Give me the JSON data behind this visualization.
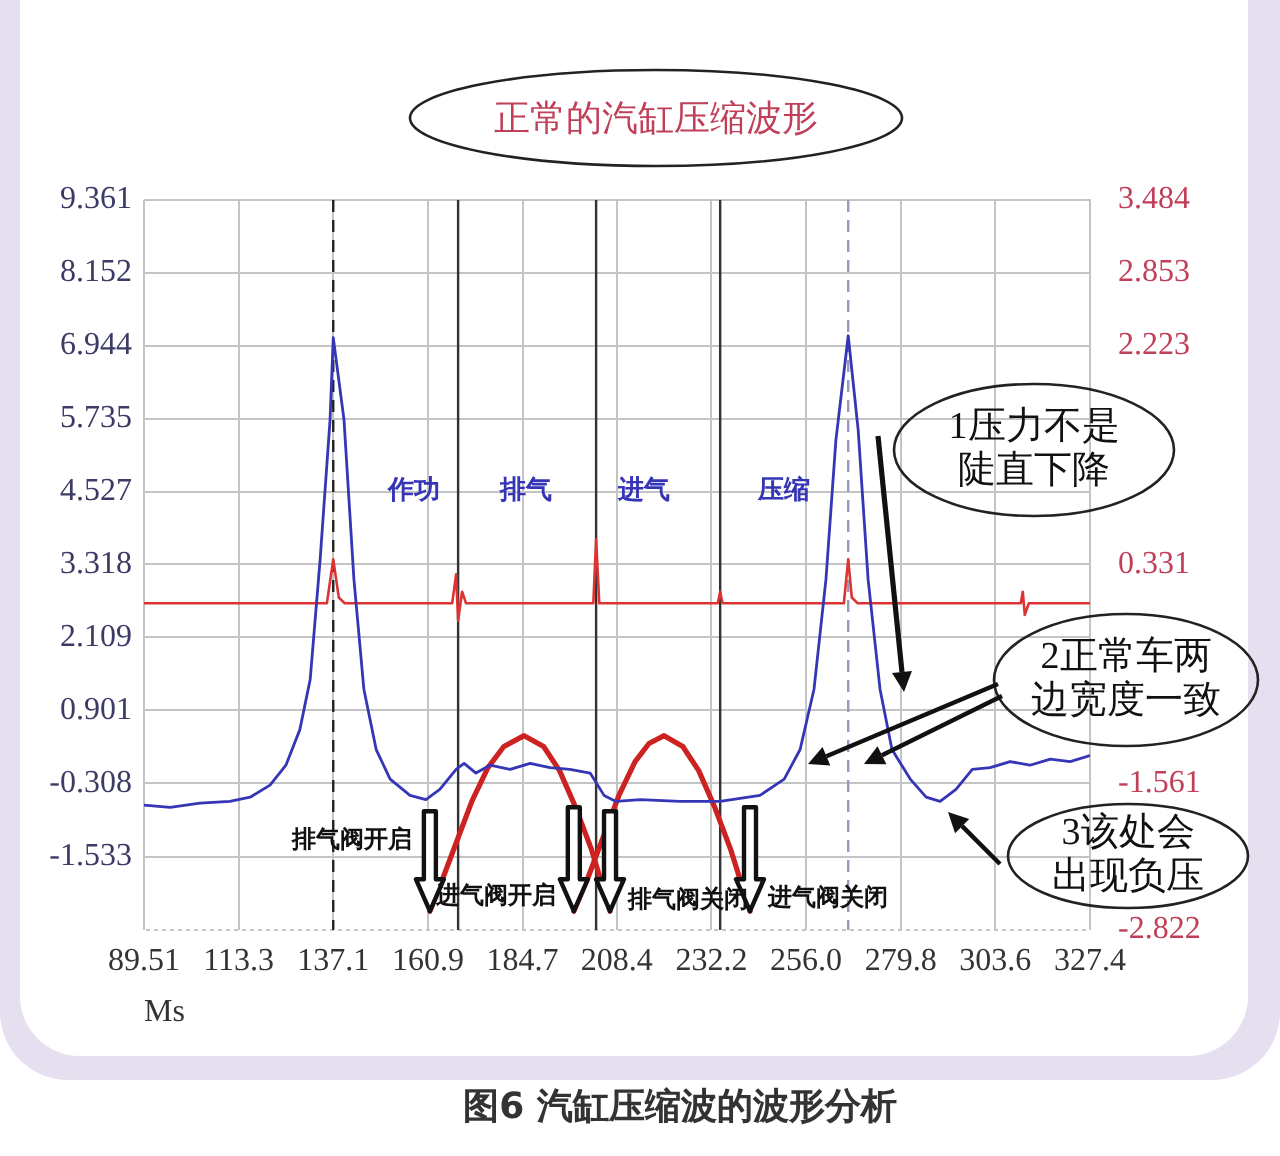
{
  "chart_data": {
    "type": "line",
    "title": "正常的汽缸压缩波形",
    "xlabel": "Ms",
    "xlim": [
      89.51,
      327.4
    ],
    "xticks": [
      89.51,
      113.3,
      137.1,
      160.9,
      184.7,
      208.4,
      232.2,
      {
        "value": 256,
        "label": "256.0"
      },
      279.8,
      303.6,
      327.4
    ],
    "ylim": [
      -2.742,
      9.361
    ],
    "yticks": [
      9.361,
      8.152,
      6.944,
      5.735,
      4.527,
      3.318,
      2.109,
      0.901,
      -0.308,
      -1.533
    ],
    "y2lim": [
      -2.822,
      3.484
    ],
    "y2ticks": [
      3.484,
      2.853,
      2.223,
      0.331,
      -1.561,
      -2.822
    ],
    "grid": true,
    "legend": false,
    "series": [
      {
        "color": "#3535b5",
        "x": [
          89.51,
          96.1,
          103.6,
          111.1,
          116.2,
          121.2,
          125.2,
          128.7,
          131.3,
          133.8,
          136.3,
          137.1,
          139.8,
          142.3,
          144.8,
          147.9,
          151.4,
          156.4,
          160.4,
          163.9,
          168,
          170,
          173,
          176.5,
          181.6,
          186.6,
          191.6,
          196.6,
          201.7,
          205.2,
          208.2,
          214.3,
          224.3,
          234.4,
          244.4,
          250.5,
          254.5,
          258,
          261,
          263.5,
          266.6,
          269.1,
          271.6,
          274.6,
          277.6,
          282.2,
          286.2,
          289.7,
          293.7,
          297.8,
          302.3,
          307.3,
          312.3,
          317.4,
          322.4,
          327.4
        ],
        "values": [
          -0.67,
          -0.71,
          -0.64,
          -0.61,
          -0.54,
          -0.34,
          -0.01,
          0.58,
          1.41,
          3.4,
          5.72,
          7.08,
          5.72,
          3.07,
          1.25,
          0.25,
          -0.24,
          -0.51,
          -0.58,
          -0.41,
          -0.08,
          0.02,
          -0.14,
          -0.01,
          -0.08,
          0.02,
          -0.05,
          -0.08,
          -0.14,
          -0.51,
          -0.61,
          -0.58,
          -0.61,
          -0.61,
          -0.51,
          -0.24,
          0.25,
          1.25,
          3.07,
          5.38,
          7.11,
          5.55,
          3.07,
          1.25,
          0.25,
          -0.24,
          -0.54,
          -0.61,
          -0.41,
          -0.08,
          -0.05,
          0.05,
          -0.01,
          0.09,
          0.05,
          0.15
        ]
      },
      {
        "color": "#dd3333",
        "axis": "y2",
        "x": [
          89.51,
          135.5,
          137.1,
          138.5,
          140,
          167,
          168,
          168.5,
          169.5,
          170.5,
          202.5,
          203.2,
          204,
          233.8,
          234.4,
          235,
          265.5,
          266.6,
          267.5,
          269,
          310,
          310.5,
          311,
          312,
          327.4
        ],
        "values": [
          0,
          0,
          0.38,
          0.05,
          0,
          0,
          0.25,
          -0.15,
          0.1,
          0,
          0,
          0.55,
          0,
          0,
          0.1,
          0,
          0,
          0.38,
          0.05,
          0,
          0,
          0.1,
          -0.1,
          0,
          0
        ]
      },
      {
        "color": "#cc2222",
        "x": [
          161.4,
          164,
          168,
          172,
          176,
          180,
          185.1,
          190,
          194,
          198,
          202,
          206.7
        ],
        "values": [
          -2.43,
          -2,
          -1.3,
          -0.6,
          -0.05,
          0.3,
          0.48,
          0.3,
          -0.1,
          -0.7,
          -1.4,
          -2.43
        ]
      },
      {
        "color": "#cc2222",
        "x": [
          197.6,
          201,
          205,
          209,
          213,
          216.5,
          220.3,
          225,
          229,
          233,
          237,
          241.9
        ],
        "values": [
          -2.43,
          -1.9,
          -1.2,
          -0.5,
          0.05,
          0.35,
          0.48,
          0.3,
          -0.1,
          -0.7,
          -1.4,
          -2.43
        ]
      }
    ],
    "ref_lines": [
      {
        "axis": "x",
        "value": 137.1,
        "color": "#222222",
        "line_style": "dashed"
      },
      {
        "axis": "x",
        "value": 168.5,
        "color": "#333333",
        "line_style": "solid"
      },
      {
        "axis": "x",
        "value": 203.2,
        "color": "#333333",
        "line_style": "solid"
      },
      {
        "axis": "x",
        "value": 234.4,
        "color": "#333333",
        "line_style": "solid"
      },
      {
        "axis": "x",
        "value": 266.6,
        "color": "#9999bb",
        "line_style": "dashed"
      }
    ],
    "annotations": [
      "作功",
      "排气",
      "进气",
      "压缩",
      {
        "text": "排气阀开启",
        "x": 161.4,
        "y": -2.43
      },
      {
        "text": "进气阀开启",
        "x": 197.6,
        "y": -2.43
      },
      {
        "text": "排气阀关闭",
        "x": 206.7,
        "y": -2.43
      },
      {
        "text": "进气阀关闭",
        "x": 241.9,
        "y": -2.43
      },
      "1压力不是陡直下降",
      "2正常车两边宽度一致",
      "3该处会出现负压",
      "图6 汽缸压缩波的波形分析"
    ]
  }
}
